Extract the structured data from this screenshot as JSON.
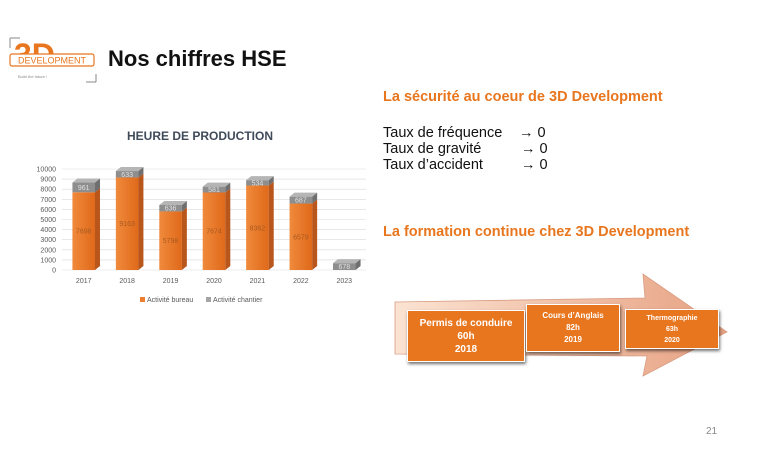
{
  "slide": {
    "title": "Nos chiffres HSE",
    "page_number": "21"
  },
  "logo": {
    "big_text": "3D",
    "word": "DEVELOPMENT",
    "tagline": "Build the future !"
  },
  "safety": {
    "title": "La sécurité au coeur de 3D Development",
    "rates": [
      {
        "label": "Taux de fréquence",
        "value": "0"
      },
      {
        "label": "Taux de gravité",
        "value": "0"
      },
      {
        "label": "Taux d’accident",
        "value": "0"
      }
    ],
    "arrow_symbol": "→"
  },
  "training": {
    "title": "La formation continue chez 3D Development",
    "items": [
      {
        "name": "Permis de conduire",
        "hours": "60h",
        "year": "2018"
      },
      {
        "name": "Cours d’Anglais",
        "hours": "82h",
        "year": "2019"
      },
      {
        "name": "Thermographie",
        "hours": "63h",
        "year": "2020"
      }
    ]
  },
  "chart_data": {
    "type": "bar",
    "stacked": true,
    "title": "HEURE DE PRODUCTION",
    "categories": [
      "2017",
      "2018",
      "2019",
      "2020",
      "2021",
      "2022",
      "2023"
    ],
    "series": [
      {
        "name": "Activité bureau",
        "values": [
          7698,
          9163,
          5798,
          7674,
          8362,
          6579,
          0
        ],
        "labels": [
          "7698",
          "9163",
          "5798",
          "7674",
          "8362",
          "6579",
          ""
        ],
        "color": "#ed7d31"
      },
      {
        "name": "Activité chantier",
        "values": [
          961,
          633,
          636,
          581,
          534,
          687,
          678
        ],
        "labels": [
          "961",
          "633",
          "636",
          "581",
          "534",
          "687",
          "678"
        ],
        "color": "#a5a5a5"
      }
    ],
    "yticks": [
      "0",
      "1000",
      "2000",
      "3000",
      "4000",
      "5000",
      "6000",
      "7000",
      "8000",
      "9000",
      "10000"
    ],
    "ylim": [
      0,
      10000
    ],
    "gridlines": true,
    "legend_position": "bottom"
  }
}
